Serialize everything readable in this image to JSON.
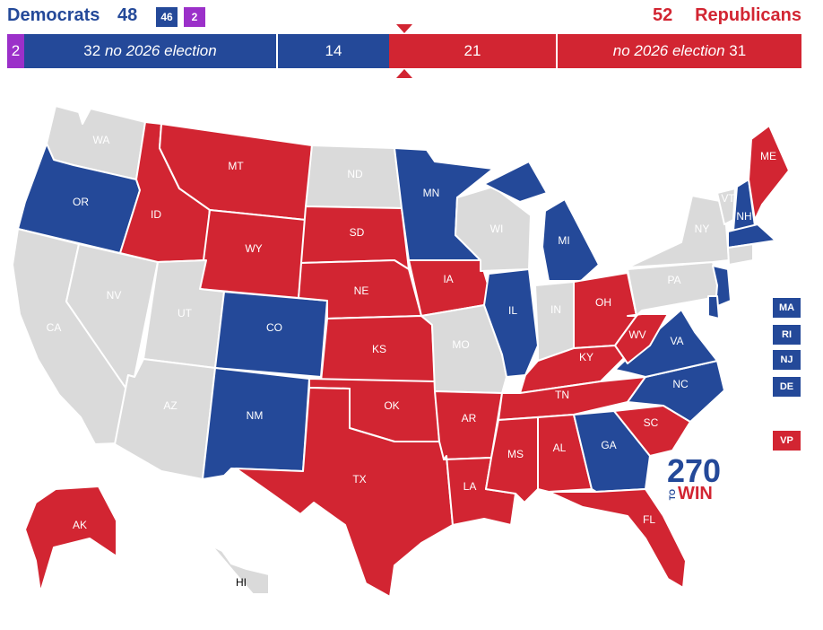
{
  "header": {
    "dem_label": "Democrats",
    "dem_total": "48",
    "dem_badge": "46",
    "ind_badge": "2",
    "rep_total": "52",
    "rep_label": "Republicans"
  },
  "bar": {
    "ind": "2",
    "dem_safe_num": "32",
    "dem_safe_text": "no 2026 election",
    "dem_up": "14",
    "rep_up": "21",
    "rep_safe_text": "no 2026 election",
    "rep_safe_num": "31"
  },
  "colors": {
    "dem": "#244999",
    "rep": "#d22532",
    "ind": "#9b30c9",
    "none": "#dadada"
  },
  "states": {
    "WA": "WA",
    "OR": "OR",
    "CA": "CA",
    "NV": "NV",
    "ID": "ID",
    "MT": "MT",
    "WY": "WY",
    "UT": "UT",
    "AZ": "AZ",
    "CO": "CO",
    "NM": "NM",
    "ND": "ND",
    "SD": "SD",
    "NE": "NE",
    "KS": "KS",
    "OK": "OK",
    "TX": "TX",
    "MN": "MN",
    "IA": "IA",
    "MO": "MO",
    "AR": "AR",
    "LA": "LA",
    "WI": "WI",
    "IL": "IL",
    "MI": "MI",
    "IN": "IN",
    "OH": "OH",
    "KY": "KY",
    "TN": "TN",
    "MS": "MS",
    "AL": "AL",
    "GA": "GA",
    "FL": "FL",
    "SC": "SC",
    "NC": "NC",
    "VA": "VA",
    "WV": "WV",
    "PA": "PA",
    "NY": "NY",
    "VT": "VT",
    "NH": "NH",
    "ME": "ME",
    "AK": "AK",
    "HI": "HI"
  },
  "side_boxes": {
    "ma": "MA",
    "ri": "RI",
    "nj": "NJ",
    "de": "DE",
    "vp": "VP"
  },
  "logo": {
    "num": "270",
    "to": "TO",
    "win": "WIN"
  }
}
